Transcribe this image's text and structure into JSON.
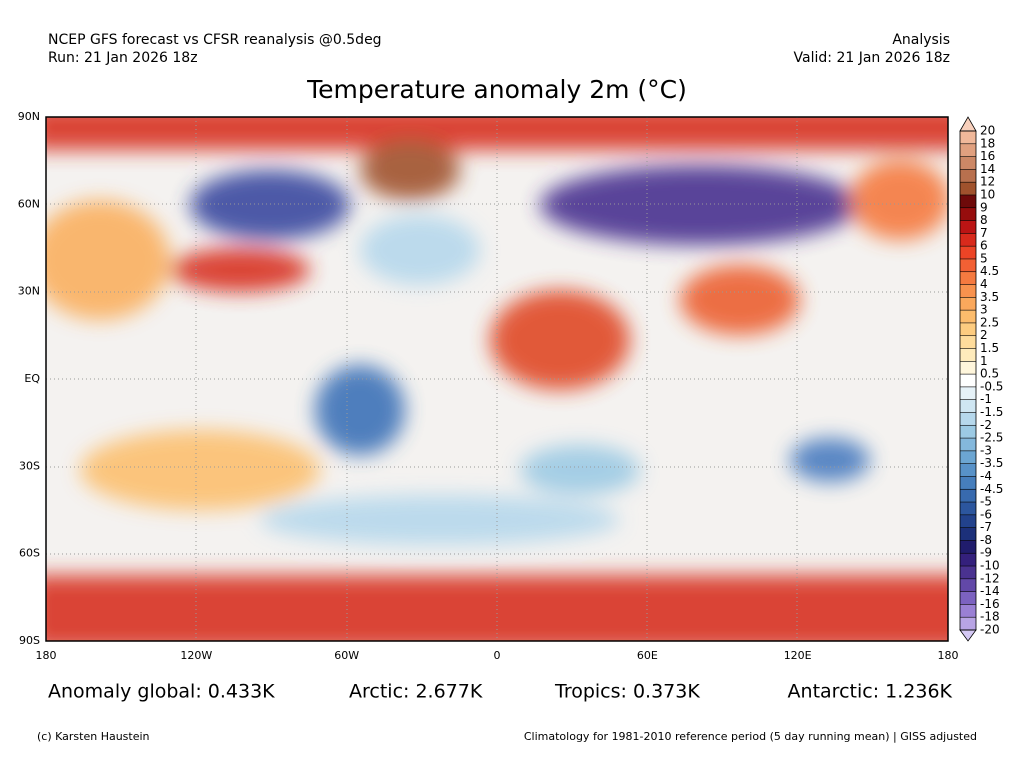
{
  "header": {
    "left_line1": "NCEP GFS forecast vs CFSR reanalysis @0.5deg",
    "left_line2": "Run: 21 Jan 2026 18z",
    "right_line1": "Analysis",
    "right_line2": "Valid: 21 Jan 2026 18z"
  },
  "title": "Temperature anomaly 2m (°C)",
  "map": {
    "lat_labels": [
      "90N",
      "60N",
      "30N",
      "EQ",
      "30S",
      "60S",
      "90S"
    ],
    "lon_labels": [
      "180",
      "120W",
      "60W",
      "0",
      "60E",
      "120E",
      "180"
    ]
  },
  "colorbar": {
    "levels": [
      20,
      18,
      16,
      14,
      12,
      10,
      9,
      8,
      7,
      6,
      5,
      4.5,
      4,
      3.5,
      3,
      2.5,
      2,
      1.5,
      1,
      0.5,
      -0.5,
      -1,
      -1.5,
      -2,
      -2.5,
      -3,
      -3.5,
      -4,
      -4.5,
      -5,
      -6,
      -7,
      -8,
      -9,
      -10,
      -12,
      -14,
      -16,
      -18,
      -20
    ],
    "colors": [
      "#f8d0bc",
      "#f0b89a",
      "#e0a07f",
      "#cc8866",
      "#b8704e",
      "#a0522d",
      "#6e0a0a",
      "#960d0d",
      "#bb1414",
      "#d82a1c",
      "#ec4426",
      "#f26034",
      "#f57a40",
      "#f8924e",
      "#faa85c",
      "#fcbc6c",
      "#fdcc80",
      "#fedc9c",
      "#feebbc",
      "#fff6dc",
      "#ffffff",
      "#e6f2f8",
      "#cfe6f2",
      "#b6d8ec",
      "#9ccae4",
      "#84b8dc",
      "#6ca6d2",
      "#5892c8",
      "#467ebc",
      "#386aae",
      "#2c569e",
      "#22428c",
      "#1c307a",
      "#201c6c",
      "#34207c",
      "#4a3290",
      "#6248a8",
      "#7c62c0",
      "#9a80d4",
      "#b8a4e4",
      "#d4c8f4"
    ]
  },
  "stats": [
    "Anomaly global: 0.433K",
    "Arctic: 2.677K",
    "Tropics: 0.373K",
    "Antarctic: 1.236K"
  ],
  "footer": {
    "left": "(c) Karsten Haustein",
    "right": "Climatology for 1981-2010 reference period (5 day running mean) | GISS adjusted"
  }
}
